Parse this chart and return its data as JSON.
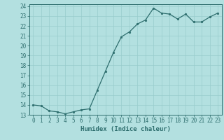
{
  "x": [
    0,
    1,
    2,
    3,
    4,
    5,
    6,
    7,
    8,
    9,
    10,
    11,
    12,
    13,
    14,
    15,
    16,
    17,
    18,
    19,
    20,
    21,
    22,
    23
  ],
  "y": [
    14.0,
    13.9,
    13.4,
    13.3,
    13.1,
    13.3,
    13.5,
    13.6,
    15.5,
    17.4,
    19.3,
    20.9,
    21.4,
    22.2,
    22.6,
    23.8,
    23.3,
    23.2,
    22.7,
    23.2,
    22.4,
    22.4,
    22.9,
    23.3
  ],
  "line_color": "#2e6e6e",
  "marker": "o",
  "marker_size": 1.8,
  "background_color": "#b3e0e0",
  "grid_color": "#99cccc",
  "xlabel": "Humidex (Indice chaleur)",
  "xlim": [
    -0.5,
    23.5
  ],
  "ylim": [
    13.0,
    24.2
  ],
  "xticks": [
    0,
    1,
    2,
    3,
    4,
    5,
    6,
    7,
    8,
    9,
    10,
    11,
    12,
    13,
    14,
    15,
    16,
    17,
    18,
    19,
    20,
    21,
    22,
    23
  ],
  "yticks": [
    13,
    14,
    15,
    16,
    17,
    18,
    19,
    20,
    21,
    22,
    23,
    24
  ],
  "tick_labelsize": 5.5,
  "xlabel_fontsize": 6.5,
  "line_width": 0.9
}
